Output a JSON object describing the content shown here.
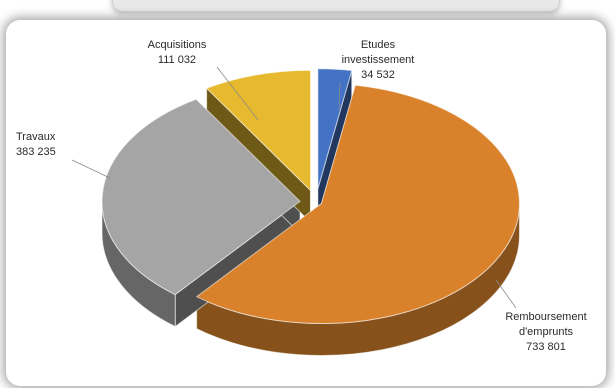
{
  "chart_data": {
    "type": "pie",
    "title": "",
    "categories": [
      "Etudes investissement",
      "Remboursement d'emprunts",
      "Travaux",
      "Acquisitions"
    ],
    "values": [
      34532,
      733801,
      383235,
      111032
    ],
    "labels": [
      {
        "line1": "Etudes",
        "line2": "investissement",
        "line3": "34 532"
      },
      {
        "line1": "Remboursement",
        "line2": "d'emprunts",
        "line3": "733 801"
      },
      {
        "line1": "Travaux",
        "line2": "383 235",
        "line3": ""
      },
      {
        "line1": "Acquisitions",
        "line2": "111 032",
        "line3": ""
      }
    ],
    "colors": [
      "#4472c4",
      "#d9822b",
      "#a5a5a5",
      "#e6b92e"
    ],
    "style": "3d-exploded",
    "legend": "none"
  }
}
